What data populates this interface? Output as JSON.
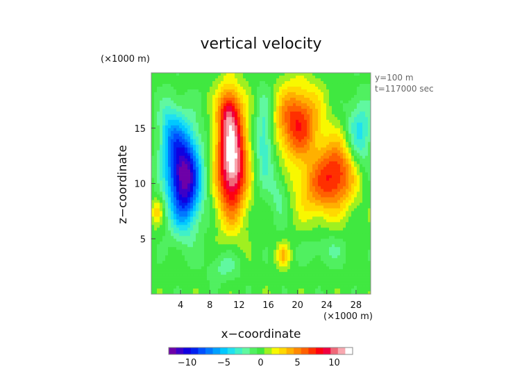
{
  "chart_data": {
    "type": "heatmap",
    "title": "vertical velocity",
    "xlabel": "x−coordinate",
    "ylabel": "z−coordinate",
    "x_unit": "(×1000 m)",
    "y_unit": "(×1000 m)",
    "xlim": [
      0,
      30
    ],
    "ylim": [
      0,
      20
    ],
    "x_ticks": [
      "4",
      "8",
      "12",
      "16",
      "20",
      "24",
      "28"
    ],
    "x_tick_values": [
      4,
      8,
      12,
      16,
      20,
      24,
      28
    ],
    "y_ticks": [
      "5",
      "10",
      "15"
    ],
    "y_tick_values": [
      5,
      10,
      15
    ],
    "annotations": [
      "y=100 m",
      "t=117000 sec"
    ],
    "colorbar": {
      "ticks": [
        "−10",
        "−5",
        "0",
        "5",
        "10"
      ],
      "tick_values": [
        -10,
        -5,
        0,
        5,
        10
      ],
      "range": [
        -12.5,
        12.5
      ],
      "levels": 25,
      "colors": [
        "#6d00a8",
        "#3c00c8",
        "#1000e0",
        "#0020f0",
        "#0050ff",
        "#0078ff",
        "#00a0ff",
        "#00c8ff",
        "#20e0f0",
        "#40f0c8",
        "#60f8a0",
        "#50f060",
        "#40e840",
        "#a0f020",
        "#f8f800",
        "#ffd800",
        "#ffb000",
        "#ff8800",
        "#ff6000",
        "#ff3000",
        "#ff0010",
        "#f00040",
        "#f06878",
        "#f8a8b0",
        "#ffffff"
      ]
    },
    "features": [
      {
        "kind": "downdraft",
        "x": 4.5,
        "z": 10.5,
        "w": -12
      },
      {
        "kind": "updraft",
        "x": 11,
        "z": 12,
        "w": 12
      },
      {
        "kind": "updraft",
        "x": 20,
        "z": 15.5,
        "w": 7
      },
      {
        "kind": "updraft",
        "x": 25.5,
        "z": 11,
        "w": 6
      },
      {
        "kind": "downdraft",
        "x": 15.5,
        "z": 14,
        "w": -4
      }
    ]
  }
}
